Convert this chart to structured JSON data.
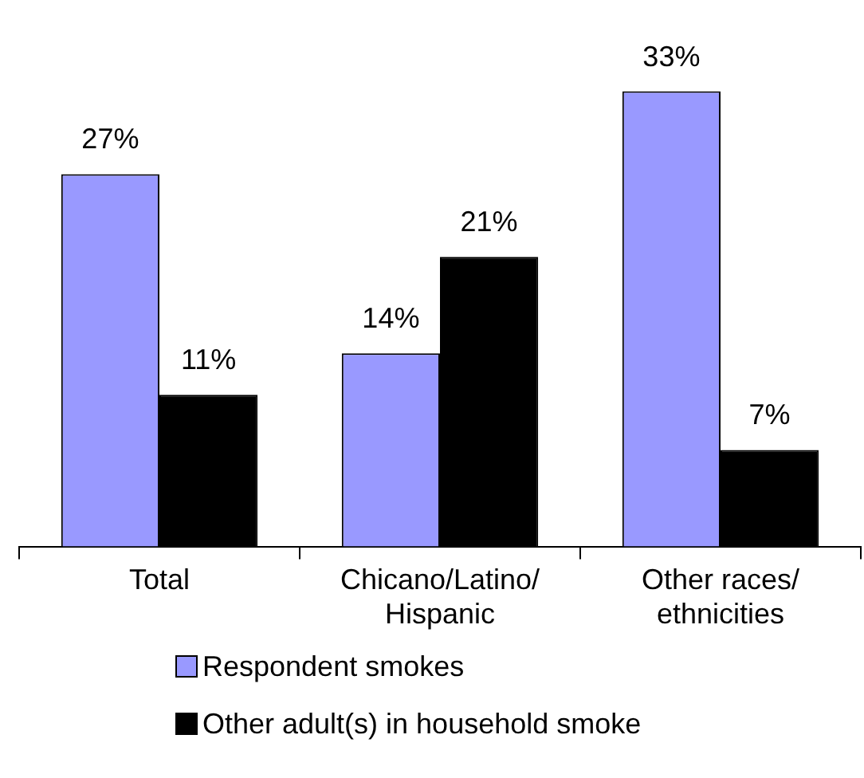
{
  "chart_data": {
    "type": "bar",
    "categories": [
      "Total",
      "Chicano/Latino/ Hispanic",
      "Other races/ ethnicities"
    ],
    "series": [
      {
        "name": "Respondent smokes",
        "color": "#9999ff",
        "values": [
          27,
          14,
          33
        ],
        "value_labels": [
          "27%",
          "14%",
          "33%"
        ]
      },
      {
        "name": "Other adult(s) in household smoke",
        "color": "#000000",
        "values": [
          11,
          21,
          7
        ],
        "value_labels": [
          "11%",
          "21%",
          "7%"
        ]
      }
    ],
    "legend": "bottom",
    "grid": false
  }
}
